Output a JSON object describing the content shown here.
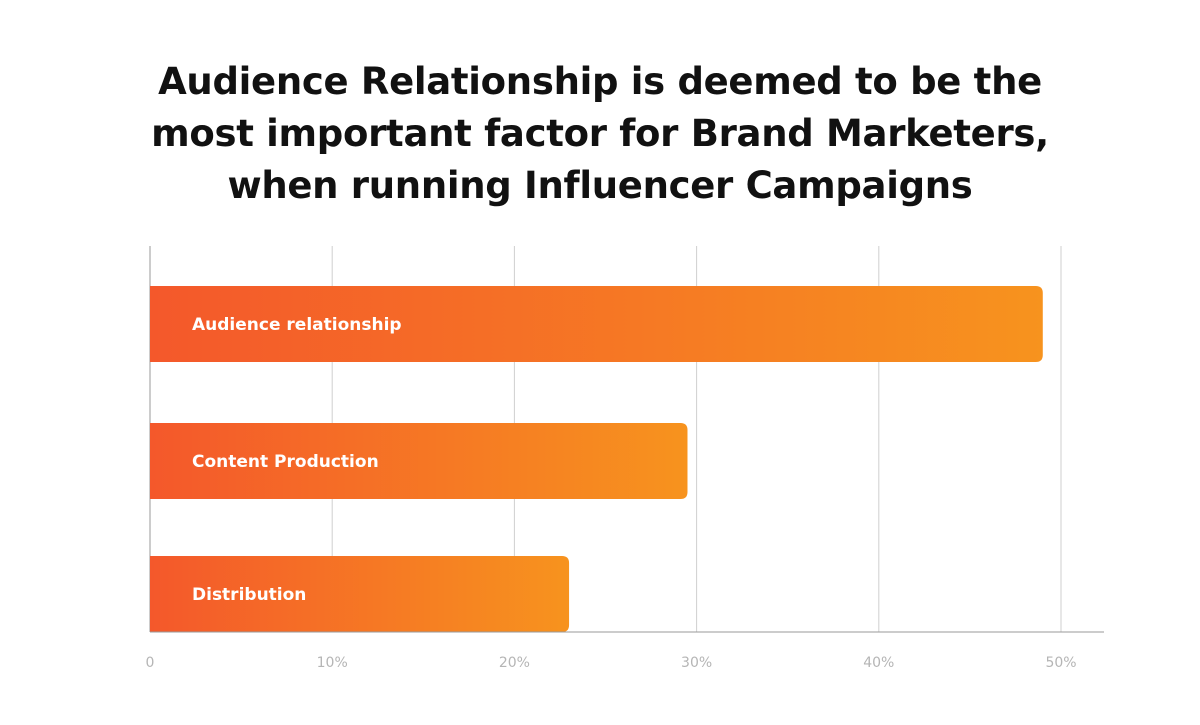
{
  "chart_data": {
    "type": "bar",
    "orientation": "horizontal",
    "title_lines": [
      "Audience Relationship is deemed to be the",
      "most important factor for Brand Marketers,",
      "when running Influencer Campaigns"
    ],
    "categories": [
      "Audience relationship",
      "Content Production",
      "Distribution"
    ],
    "values": [
      49,
      29.5,
      23
    ],
    "unit": "%",
    "xlim": [
      0,
      50
    ],
    "x_ticks": [
      0,
      10,
      20,
      30,
      40,
      50
    ],
    "x_tick_labels": [
      "0",
      "10%",
      "20%",
      "30%",
      "40%",
      "50%"
    ],
    "grid": true,
    "colors": {
      "bar_start": "#f4582b",
      "bar_end": "#f7931e",
      "grid": "#cfcfcf",
      "axis": "#9a9a9a",
      "tick_label": "#b5b5b5",
      "bar_label": "#ffffff"
    }
  }
}
